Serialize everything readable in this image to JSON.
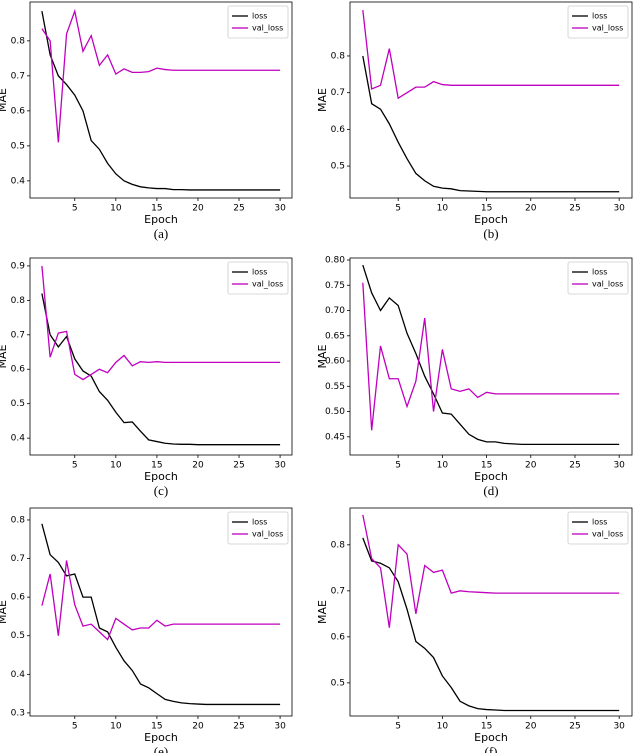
{
  "chart_data": [
    {
      "type": "line",
      "caption": "(a)",
      "xlabel": "Epoch",
      "ylabel": "MAE",
      "legend": "upper right",
      "x": [
        1,
        2,
        3,
        4,
        5,
        6,
        7,
        8,
        9,
        10,
        11,
        12,
        13,
        14,
        15,
        16,
        17,
        18,
        19,
        20,
        21,
        22,
        23,
        24,
        25,
        26,
        27,
        28,
        29,
        30
      ],
      "xlim": [
        -0.45,
        31.45
      ],
      "xticks": [
        5,
        10,
        15,
        20,
        25,
        30
      ],
      "ylim": [
        0.351,
        0.911
      ],
      "yticks": [
        0.4,
        0.5,
        0.6,
        0.7,
        0.8
      ],
      "series": [
        {
          "name": "loss",
          "color": "#000000",
          "values": [
            0.885,
            0.76,
            0.7,
            0.675,
            0.645,
            0.6,
            0.515,
            0.49,
            0.45,
            0.42,
            0.4,
            0.39,
            0.383,
            0.38,
            0.378,
            0.378,
            0.375,
            0.375,
            0.374,
            0.374,
            0.374,
            0.374,
            0.374,
            0.374,
            0.374,
            0.374,
            0.374,
            0.374,
            0.374,
            0.374
          ]
        },
        {
          "name": "val_loss",
          "color": "#bf00bf",
          "values": [
            0.835,
            0.8,
            0.51,
            0.82,
            0.885,
            0.77,
            0.815,
            0.73,
            0.76,
            0.705,
            0.72,
            0.71,
            0.71,
            0.712,
            0.722,
            0.718,
            0.716,
            0.716,
            0.716,
            0.716,
            0.716,
            0.716,
            0.716,
            0.716,
            0.716,
            0.716,
            0.716,
            0.716,
            0.716,
            0.716
          ]
        }
      ]
    },
    {
      "type": "line",
      "caption": "(b)",
      "xlabel": "Epoch",
      "ylabel": "MAE",
      "legend": "upper right",
      "x": [
        1,
        2,
        3,
        4,
        5,
        6,
        7,
        8,
        9,
        10,
        11,
        12,
        13,
        14,
        15,
        16,
        17,
        18,
        19,
        20,
        21,
        22,
        23,
        24,
        25,
        26,
        27,
        28,
        29,
        30
      ],
      "xlim": [
        -0.45,
        31.45
      ],
      "xticks": [
        5,
        10,
        15,
        20,
        25,
        30
      ],
      "ylim": [
        0.413,
        0.947
      ],
      "yticks": [
        0.5,
        0.6,
        0.7,
        0.8
      ],
      "series": [
        {
          "name": "loss",
          "color": "#000000",
          "values": [
            0.8,
            0.67,
            0.655,
            0.615,
            0.565,
            0.52,
            0.48,
            0.46,
            0.445,
            0.44,
            0.438,
            0.433,
            0.432,
            0.431,
            0.43,
            0.43,
            0.43,
            0.43,
            0.43,
            0.43,
            0.43,
            0.43,
            0.43,
            0.43,
            0.43,
            0.43,
            0.43,
            0.43,
            0.43,
            0.43
          ]
        },
        {
          "name": "val_loss",
          "color": "#bf00bf",
          "values": [
            0.925,
            0.71,
            0.72,
            0.82,
            0.685,
            0.7,
            0.715,
            0.715,
            0.73,
            0.722,
            0.72,
            0.72,
            0.72,
            0.72,
            0.72,
            0.72,
            0.72,
            0.72,
            0.72,
            0.72,
            0.72,
            0.72,
            0.72,
            0.72,
            0.72,
            0.72,
            0.72,
            0.72,
            0.72,
            0.72
          ]
        }
      ]
    },
    {
      "type": "line",
      "caption": "(c)",
      "xlabel": "Epoch",
      "ylabel": "MAE",
      "legend": "upper right",
      "x": [
        1,
        2,
        3,
        4,
        5,
        6,
        7,
        8,
        9,
        10,
        11,
        12,
        13,
        14,
        15,
        16,
        17,
        18,
        19,
        20,
        21,
        22,
        23,
        24,
        25,
        26,
        27,
        28,
        29,
        30
      ],
      "xlim": [
        -0.45,
        31.45
      ],
      "xticks": [
        5,
        10,
        15,
        20,
        25,
        30
      ],
      "ylim": [
        0.351,
        0.923
      ],
      "yticks": [
        0.4,
        0.5,
        0.6,
        0.7,
        0.8,
        0.9
      ],
      "series": [
        {
          "name": "loss",
          "color": "#000000",
          "values": [
            0.82,
            0.7,
            0.665,
            0.695,
            0.63,
            0.595,
            0.58,
            0.535,
            0.51,
            0.475,
            0.445,
            0.447,
            0.42,
            0.395,
            0.39,
            0.385,
            0.383,
            0.382,
            0.382,
            0.381,
            0.381,
            0.381,
            0.381,
            0.381,
            0.381,
            0.381,
            0.381,
            0.381,
            0.381,
            0.381
          ]
        },
        {
          "name": "val_loss",
          "color": "#bf00bf",
          "values": [
            0.9,
            0.635,
            0.705,
            0.71,
            0.585,
            0.57,
            0.585,
            0.6,
            0.59,
            0.62,
            0.64,
            0.61,
            0.622,
            0.62,
            0.622,
            0.62,
            0.62,
            0.62,
            0.62,
            0.62,
            0.62,
            0.62,
            0.62,
            0.62,
            0.62,
            0.62,
            0.62,
            0.62,
            0.62,
            0.62
          ]
        }
      ]
    },
    {
      "type": "line",
      "caption": "(d)",
      "xlabel": "Epoch",
      "ylabel": "MAE",
      "legend": "upper right",
      "x": [
        1,
        2,
        3,
        4,
        5,
        6,
        7,
        8,
        9,
        10,
        11,
        12,
        13,
        14,
        15,
        16,
        17,
        18,
        19,
        20,
        21,
        22,
        23,
        24,
        25,
        26,
        27,
        28,
        29,
        30
      ],
      "xlim": [
        -0.45,
        31.45
      ],
      "xticks": [
        5,
        10,
        15,
        20,
        25,
        30
      ],
      "ylim": [
        0.414,
        0.804
      ],
      "yticks": [
        0.45,
        {
          "value": 0.5,
          "label": "0.50"
        },
        0.55,
        {
          "value": 0.6,
          "label": "0.60"
        },
        0.65,
        {
          "value": 0.7,
          "label": "0.70"
        },
        0.75,
        {
          "value": 0.8,
          "label": "0.80"
        }
      ],
      "series": [
        {
          "name": "loss",
          "color": "#000000",
          "values": [
            0.79,
            0.735,
            0.7,
            0.725,
            0.71,
            0.655,
            0.615,
            0.57,
            0.535,
            0.497,
            0.495,
            0.475,
            0.455,
            0.445,
            0.44,
            0.44,
            0.437,
            0.436,
            0.435,
            0.435,
            0.435,
            0.435,
            0.435,
            0.435,
            0.435,
            0.435,
            0.435,
            0.435,
            0.435,
            0.435
          ]
        },
        {
          "name": "val_loss",
          "color": "#bf00bf",
          "values": [
            0.755,
            0.463,
            0.63,
            0.565,
            0.565,
            0.51,
            0.56,
            0.685,
            0.5,
            0.623,
            0.545,
            0.54,
            0.545,
            0.528,
            0.538,
            0.535,
            0.535,
            0.535,
            0.535,
            0.535,
            0.535,
            0.535,
            0.535,
            0.535,
            0.535,
            0.535,
            0.535,
            0.535,
            0.535,
            0.535
          ]
        }
      ]
    },
    {
      "type": "line",
      "caption": "(e)",
      "xlabel": "Epoch",
      "ylabel": "MAE",
      "legend": "upper right",
      "x": [
        1,
        2,
        3,
        4,
        5,
        6,
        7,
        8,
        9,
        10,
        11,
        12,
        13,
        14,
        15,
        16,
        17,
        18,
        19,
        20,
        21,
        22,
        23,
        24,
        25,
        26,
        27,
        28,
        29,
        30
      ],
      "xlim": [
        -0.45,
        31.45
      ],
      "xticks": [
        5,
        10,
        15,
        20,
        25,
        30
      ],
      "ylim": [
        0.292,
        0.831
      ],
      "yticks": [
        0.3,
        0.4,
        0.5,
        0.6,
        0.7,
        0.8
      ],
      "series": [
        {
          "name": "loss",
          "color": "#000000",
          "values": [
            0.79,
            0.71,
            0.69,
            0.655,
            0.66,
            0.6,
            0.6,
            0.52,
            0.51,
            0.47,
            0.435,
            0.41,
            0.375,
            0.365,
            0.35,
            0.335,
            0.33,
            0.326,
            0.324,
            0.323,
            0.322,
            0.322,
            0.322,
            0.322,
            0.322,
            0.322,
            0.322,
            0.322,
            0.322,
            0.322
          ]
        },
        {
          "name": "val_loss",
          "color": "#bf00bf",
          "values": [
            0.578,
            0.66,
            0.5,
            0.695,
            0.58,
            0.525,
            0.53,
            0.51,
            0.49,
            0.545,
            0.53,
            0.515,
            0.52,
            0.52,
            0.54,
            0.525,
            0.53,
            0.53,
            0.53,
            0.53,
            0.53,
            0.53,
            0.53,
            0.53,
            0.53,
            0.53,
            0.53,
            0.53,
            0.53,
            0.53
          ]
        }
      ]
    },
    {
      "type": "line",
      "caption": "(f)",
      "xlabel": "Epoch",
      "ylabel": "MAE",
      "legend": "upper right",
      "x": [
        1,
        2,
        3,
        4,
        5,
        6,
        7,
        8,
        9,
        10,
        11,
        12,
        13,
        14,
        15,
        16,
        17,
        18,
        19,
        20,
        21,
        22,
        23,
        24,
        25,
        26,
        27,
        28,
        29,
        30
      ],
      "xlim": [
        -0.45,
        31.45
      ],
      "xticks": [
        5,
        10,
        15,
        20,
        25,
        30
      ],
      "ylim": [
        0.428,
        0.88
      ],
      "yticks": [
        0.5,
        0.6,
        0.7,
        0.8
      ],
      "series": [
        {
          "name": "loss",
          "color": "#000000",
          "values": [
            0.815,
            0.765,
            0.76,
            0.75,
            0.72,
            0.66,
            0.59,
            0.575,
            0.555,
            0.515,
            0.49,
            0.46,
            0.45,
            0.444,
            0.442,
            0.441,
            0.44,
            0.44,
            0.44,
            0.44,
            0.44,
            0.44,
            0.44,
            0.44,
            0.44,
            0.44,
            0.44,
            0.44,
            0.44,
            0.44
          ]
        },
        {
          "name": "val_loss",
          "color": "#bf00bf",
          "values": [
            0.865,
            0.77,
            0.75,
            0.62,
            0.8,
            0.78,
            0.65,
            0.755,
            0.74,
            0.745,
            0.695,
            0.7,
            0.698,
            0.697,
            0.696,
            0.695,
            0.695,
            0.695,
            0.695,
            0.695,
            0.695,
            0.695,
            0.695,
            0.695,
            0.695,
            0.695,
            0.695,
            0.695,
            0.695,
            0.695
          ]
        }
      ]
    }
  ]
}
